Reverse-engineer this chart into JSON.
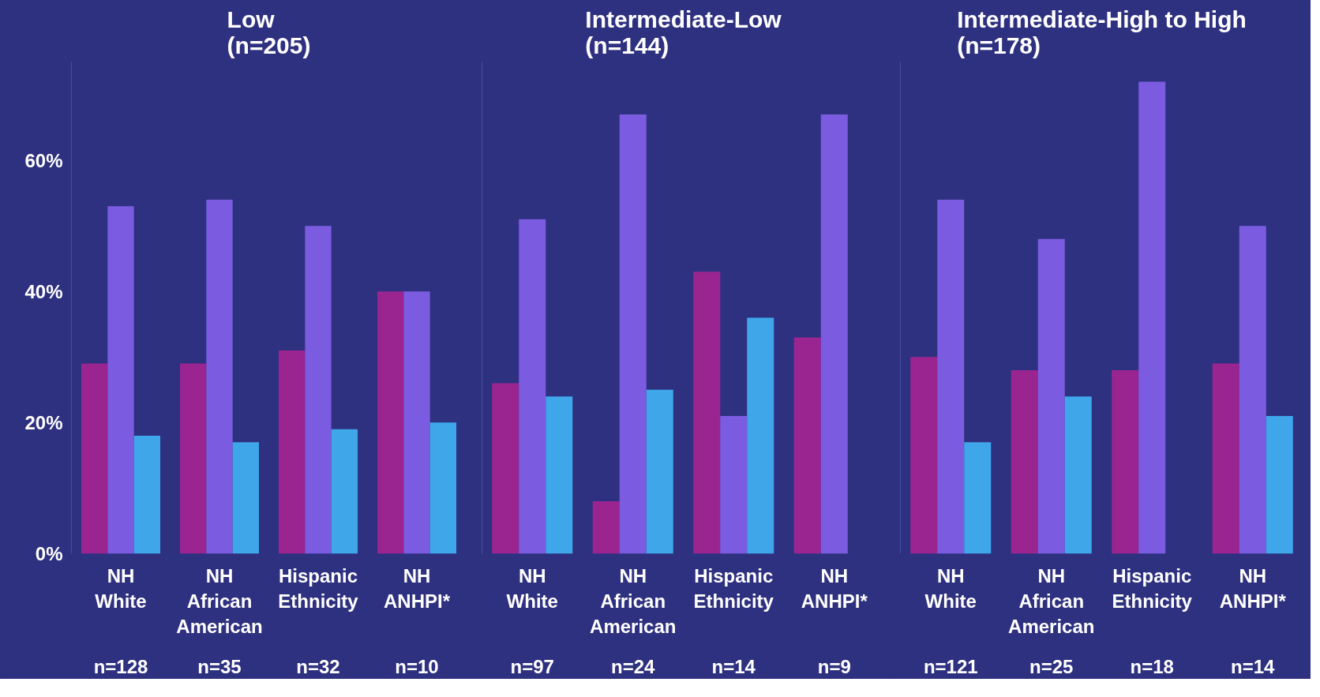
{
  "chart_data": [
    {
      "type": "bar",
      "title": "Low\n(n=205)",
      "categories": [
        "NH\nWhite",
        "NH\nAfrican\nAmerican",
        "Hispanic\nEthnicity",
        "NH\nANHPI*"
      ],
      "series": [
        {
          "color": "#9b2590",
          "values": [
            29,
            29,
            31,
            40
          ]
        },
        {
          "color": "#7b5ce0",
          "values": [
            53,
            54,
            50,
            40
          ]
        },
        {
          "color": "#3fa6ea",
          "values": [
            18,
            17,
            19,
            20
          ]
        }
      ],
      "ylim": [
        0,
        75
      ],
      "yticks": [
        {
          "value": 0,
          "label": "0%"
        },
        {
          "value": 20,
          "label": "20%"
        },
        {
          "value": 40,
          "label": "40%"
        },
        {
          "value": 60,
          "label": "60%"
        }
      ],
      "annotations": [
        "n=128",
        "n=35",
        "n=32",
        "n=10"
      ]
    },
    {
      "type": "bar",
      "title": "Intermediate-Low\n(n=144)",
      "categories": [
        "NH\nWhite",
        "NH\nAfrican\nAmerican",
        "Hispanic\nEthnicity",
        "NH\nANHPI*"
      ],
      "series": [
        {
          "color": "#9b2590",
          "values": [
            26,
            8,
            43,
            33
          ]
        },
        {
          "color": "#7b5ce0",
          "values": [
            51,
            67,
            21,
            67
          ]
        },
        {
          "color": "#3fa6ea",
          "values": [
            24,
            25,
            36,
            0
          ]
        }
      ],
      "ylim": [
        0,
        75
      ],
      "tick_labels": "x",
      "annotations": [
        "n=97",
        "n=24",
        "n=14",
        "n=9"
      ]
    },
    {
      "type": "bar",
      "title": "Intermediate-High to High\n(n=178)",
      "categories": [
        "NH\nWhite",
        "NH\nAfrican\nAmerican",
        "Hispanic\nEthnicity",
        "NH\nANHPI*"
      ],
      "series": [
        {
          "color": "#9b2590",
          "values": [
            30,
            28,
            28,
            29
          ]
        },
        {
          "color": "#7b5ce0",
          "values": [
            54,
            48,
            72,
            50
          ]
        },
        {
          "color": "#3fa6ea",
          "values": [
            17,
            24,
            0,
            21
          ]
        }
      ],
      "ylim": [
        0,
        75
      ],
      "tick_labels": "x",
      "annotations": [
        "n=121",
        "n=25",
        "n=18",
        "n=14"
      ]
    }
  ]
}
